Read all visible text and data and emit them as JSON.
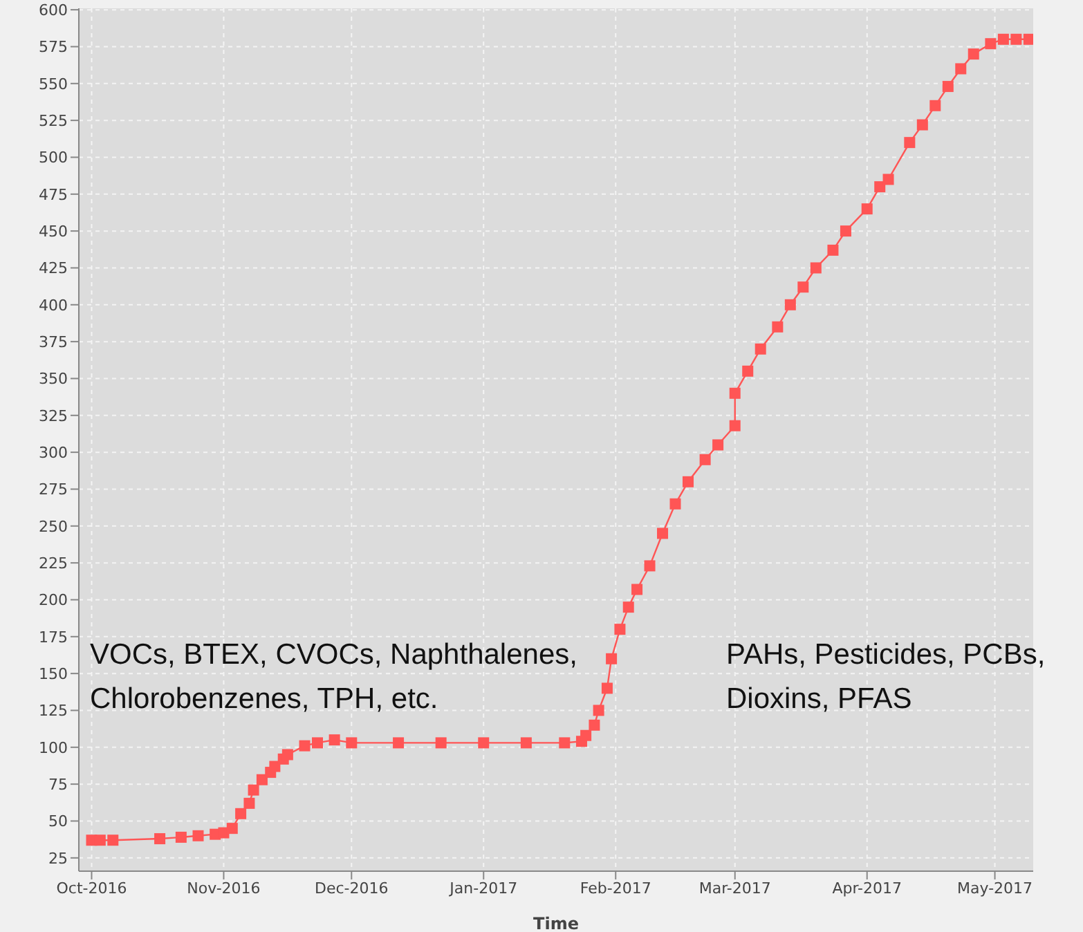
{
  "chart_data": {
    "type": "line",
    "xlabel": "Time",
    "x": [
      "2016-10-01",
      "2016-10-03",
      "2016-10-06",
      "2016-10-17",
      "2016-10-22",
      "2016-10-26",
      "2016-10-30",
      "2016-11-01",
      "2016-11-03",
      "2016-11-05",
      "2016-11-07",
      "2016-11-08",
      "2016-11-10",
      "2016-11-12",
      "2016-11-13",
      "2016-11-15",
      "2016-11-16",
      "2016-11-20",
      "2016-11-23",
      "2016-11-27",
      "2016-12-01",
      "2016-12-12",
      "2016-12-22",
      "2017-01-01",
      "2017-01-11",
      "2017-01-20",
      "2017-01-24",
      "2017-01-25",
      "2017-01-27",
      "2017-01-28",
      "2017-01-30",
      "2017-01-31",
      "2017-02-02",
      "2017-02-04",
      "2017-02-06",
      "2017-02-09",
      "2017-02-12",
      "2017-02-15",
      "2017-02-18",
      "2017-02-22",
      "2017-02-25",
      "2017-03-01",
      "2017-03-01",
      "2017-03-04",
      "2017-03-07",
      "2017-03-11",
      "2017-03-14",
      "2017-03-17",
      "2017-03-20",
      "2017-03-24",
      "2017-03-27",
      "2017-04-01",
      "2017-04-04",
      "2017-04-06",
      "2017-04-11",
      "2017-04-14",
      "2017-04-17",
      "2017-04-20",
      "2017-04-23",
      "2017-04-26",
      "2017-04-30",
      "2017-05-03",
      "2017-05-06",
      "2017-05-09"
    ],
    "series": [
      {
        "color": "#ff5555",
        "values": [
          37,
          37,
          37,
          38,
          39,
          40,
          41,
          42,
          45,
          55,
          62,
          71,
          78,
          83,
          87,
          92,
          95,
          101,
          103,
          105,
          103,
          103,
          103,
          103,
          103,
          103,
          104,
          108,
          115,
          125,
          140,
          160,
          180,
          195,
          207,
          223,
          245,
          265,
          280,
          295,
          305,
          318,
          340,
          355,
          370,
          385,
          400,
          412,
          425,
          437,
          450,
          465,
          480,
          485,
          510,
          522,
          535,
          548,
          560,
          570,
          577,
          580,
          580,
          580
        ]
      }
    ],
    "xlim": [
      "2016-09-28",
      "2017-05-10"
    ],
    "xticks": [
      {
        "value": "2016-10-01",
        "label": "Oct-2016"
      },
      {
        "value": "2016-11-01",
        "label": "Nov-2016"
      },
      {
        "value": "2016-12-01",
        "label": "Dec-2016"
      },
      {
        "value": "2017-01-01",
        "label": "Jan-2017"
      },
      {
        "value": "2017-02-01",
        "label": "Feb-2017"
      },
      {
        "value": "2017-03-01",
        "label": "Mar-2017"
      },
      {
        "value": "2017-04-01",
        "label": "Apr-2017"
      },
      {
        "value": "2017-05-01",
        "label": "May-2017"
      }
    ],
    "ylim": [
      16,
      601
    ],
    "yticks": [
      25,
      50,
      75,
      100,
      125,
      150,
      175,
      200,
      225,
      250,
      275,
      300,
      325,
      350,
      375,
      400,
      425,
      450,
      475,
      500,
      525,
      550,
      575,
      600
    ],
    "grid": true,
    "marker": "square",
    "line_style": "solid",
    "annotations": [
      "VOCs, BTEX, CVOCs, Naphthalenes,\nChlorobenzenes, TPH, etc.",
      "PAHs, Pesticides, PCBs,\nDioxins, PFAS"
    ]
  }
}
